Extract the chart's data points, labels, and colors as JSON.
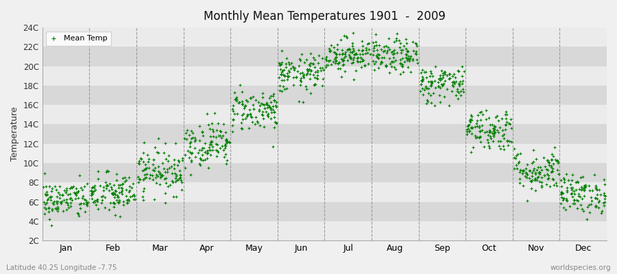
{
  "title": "Monthly Mean Temperatures 1901  -  2009",
  "ylabel": "Temperature",
  "xlabel_bottom_left": "Latitude 40.25 Longitude -7.75",
  "xlabel_bottom_right": "worldspecies.org",
  "legend_label": "Mean Temp",
  "marker_color": "#008000",
  "bg_color": "#f0f0f0",
  "plot_bg_color": "#e8e8e8",
  "stripe_light": "#ebebeb",
  "stripe_dark": "#d8d8d8",
  "ytick_labels": [
    "2C",
    "4C",
    "6C",
    "8C",
    "10C",
    "12C",
    "14C",
    "16C",
    "18C",
    "20C",
    "22C",
    "24C"
  ],
  "ytick_values": [
    2,
    4,
    6,
    8,
    10,
    12,
    14,
    16,
    18,
    20,
    22,
    24
  ],
  "ylim": [
    2,
    24
  ],
  "months": [
    "Jan",
    "Feb",
    "Mar",
    "Apr",
    "May",
    "Jun",
    "Jul",
    "Aug",
    "Sep",
    "Oct",
    "Nov",
    "Dec"
  ],
  "xlim": [
    0,
    12
  ],
  "num_years": 109,
  "mean_temps": [
    6.2,
    6.8,
    9.2,
    12.0,
    15.5,
    19.2,
    21.2,
    21.0,
    18.2,
    13.5,
    9.2,
    6.8
  ],
  "std_temps": [
    1.0,
    1.1,
    1.2,
    1.2,
    1.1,
    1.0,
    0.9,
    0.9,
    1.0,
    1.1,
    1.1,
    1.0
  ],
  "random_seed": 42
}
